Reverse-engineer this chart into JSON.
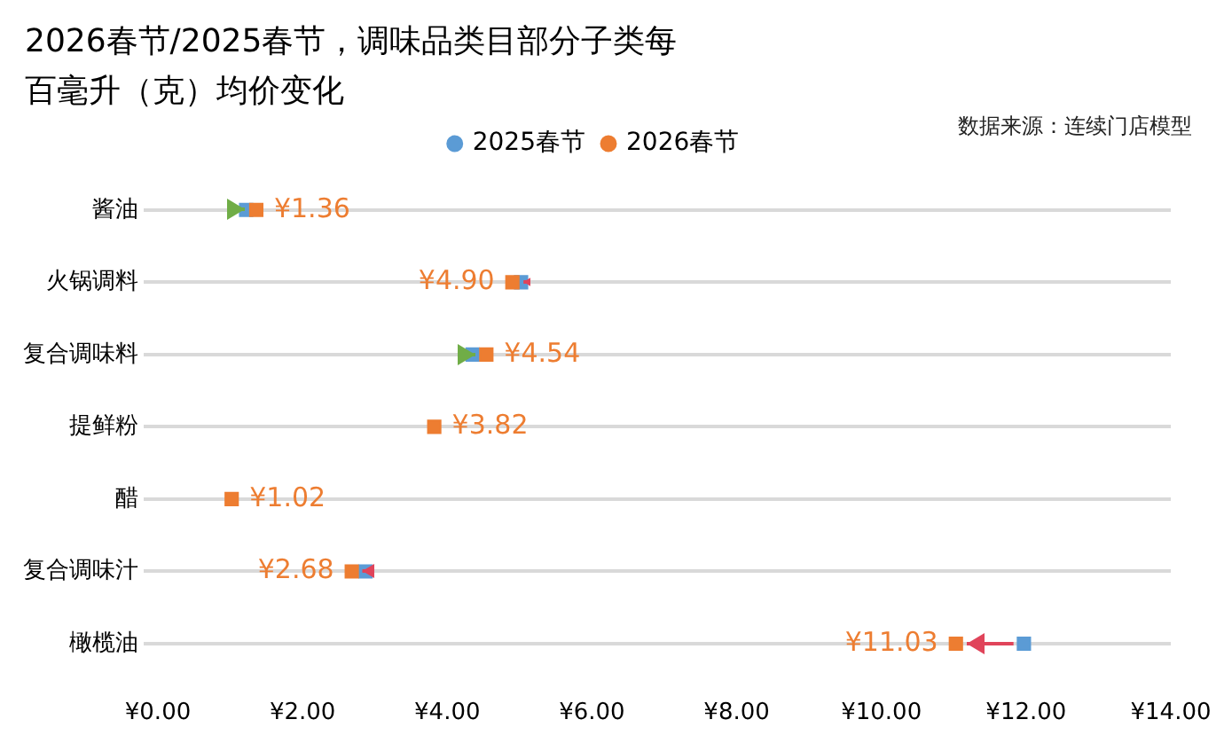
{
  "chart_data": {
    "type": "scatter",
    "title": "2026春节/2025春节，调味品类目部分子类每百毫升（克）均价变化",
    "orientation": "horizontal",
    "categories": [
      "酱油",
      "火锅调料",
      "复合调味料",
      "提鲜粉",
      "醋",
      "复合调味汁",
      "橄榄油"
    ],
    "series": [
      {
        "name": "2025春节",
        "color": "#5b9bd5",
        "values": [
          1.22,
          5.02,
          4.35,
          null,
          null,
          2.87,
          11.97
        ]
      },
      {
        "name": "2026春节",
        "color": "#ed7d31",
        "values": [
          1.36,
          4.9,
          4.54,
          3.82,
          1.02,
          2.68,
          11.03
        ],
        "value_labels": [
          "¥1.36",
          "¥4.90",
          "¥4.54",
          "¥3.82",
          "¥1.02",
          "¥2.68",
          "¥11.03"
        ]
      }
    ],
    "xlim": [
      0,
      14
    ],
    "xticks": [
      {
        "value": 0,
        "label": "¥0.00"
      },
      {
        "value": 2,
        "label": "¥2.00"
      },
      {
        "value": 4,
        "label": "¥4.00"
      },
      {
        "value": 6,
        "label": "¥6.00"
      },
      {
        "value": 8,
        "label": "¥8.00"
      },
      {
        "value": 10,
        "label": "¥10.00"
      },
      {
        "value": 12,
        "label": "¥12.00"
      },
      {
        "value": 14,
        "label": "¥14.00"
      }
    ],
    "grid": "y",
    "legend": "top",
    "marker": "square",
    "annotations": [
      "数据来源：连续门店模型"
    ]
  }
}
